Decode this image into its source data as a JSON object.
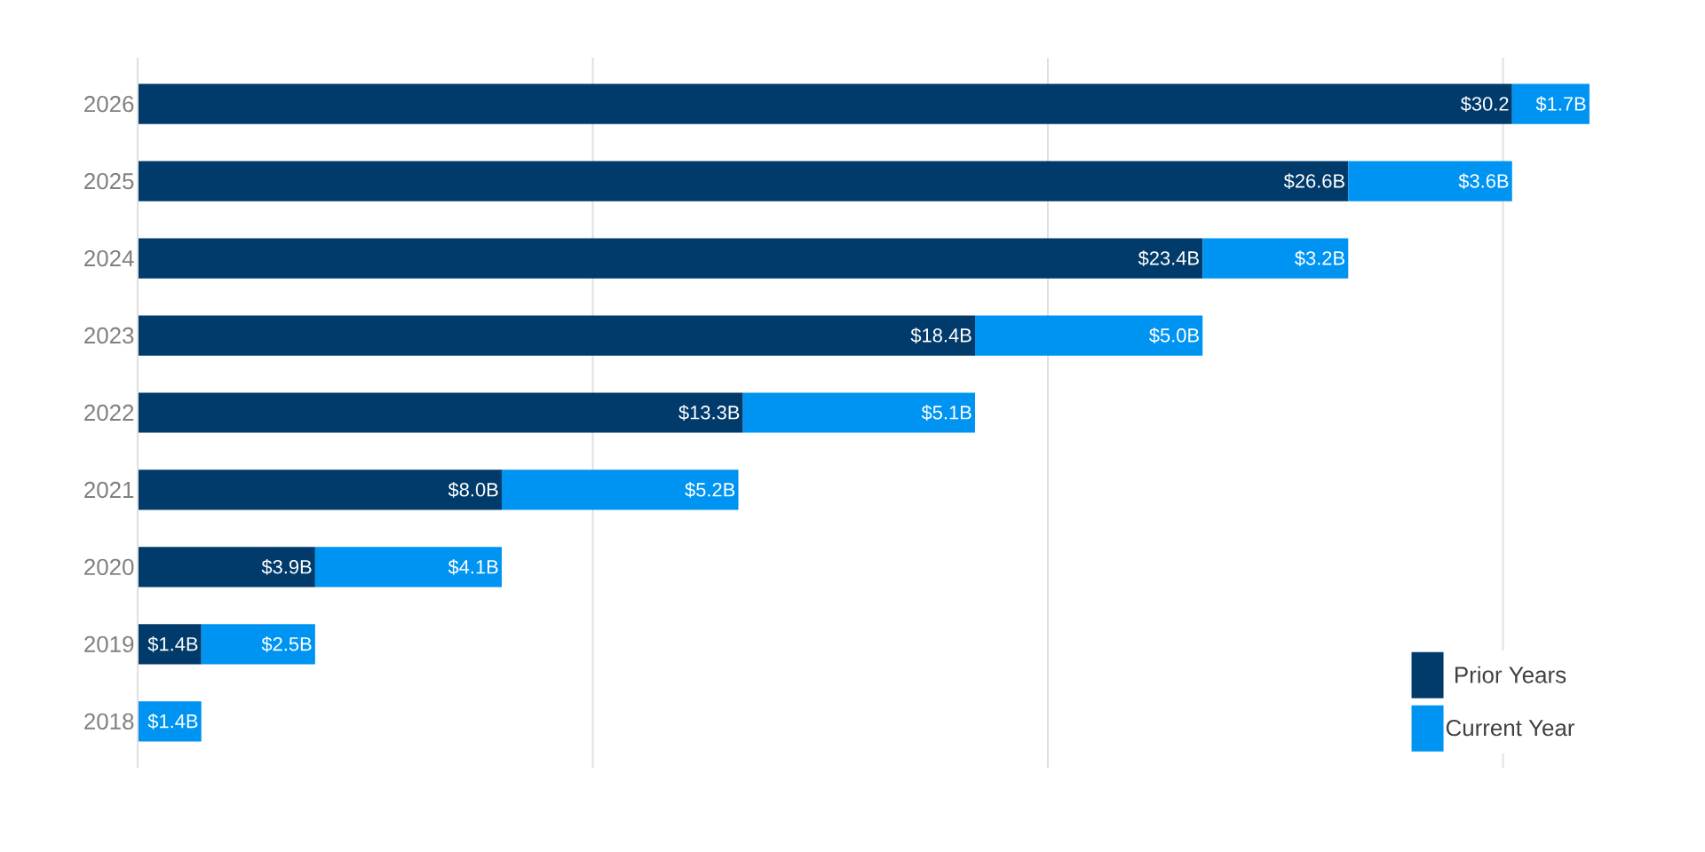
{
  "chart_data": {
    "type": "bar",
    "orientation": "horizontal",
    "stacked": true,
    "categories": [
      "2026",
      "2025",
      "2024",
      "2023",
      "2022",
      "2021",
      "2020",
      "2019",
      "2018"
    ],
    "series": [
      {
        "name": "Prior Years",
        "color": "#003b6b",
        "values": [
          30.2,
          26.6,
          23.4,
          18.4,
          13.3,
          8.0,
          3.9,
          1.4,
          null
        ],
        "value_labels": [
          "$30.2",
          "$26.6B",
          "$23.4B",
          "$18.4B",
          "$13.3B",
          "$8.0B",
          "$3.9B",
          "$1.4B",
          null
        ]
      },
      {
        "name": "Current Year",
        "color": "#0094f2",
        "values": [
          1.7,
          3.6,
          3.2,
          5.0,
          5.1,
          5.2,
          4.1,
          2.5,
          1.4
        ],
        "value_labels": [
          "$1.7B",
          "$3.6B",
          "$3.2B",
          "$5.0B",
          "$5.1B",
          "$5.2B",
          "$4.1B",
          "$2.5B",
          "$1.4B"
        ]
      }
    ],
    "xlim": [
      0,
      32
    ],
    "xticks": [
      {
        "value": 0,
        "label": null
      },
      {
        "value": 10,
        "label": null
      },
      {
        "value": 20,
        "label": null
      },
      {
        "value": 30,
        "label": null
      }
    ],
    "grid": "x",
    "tick_labels": "y",
    "legend": "bottom right"
  }
}
